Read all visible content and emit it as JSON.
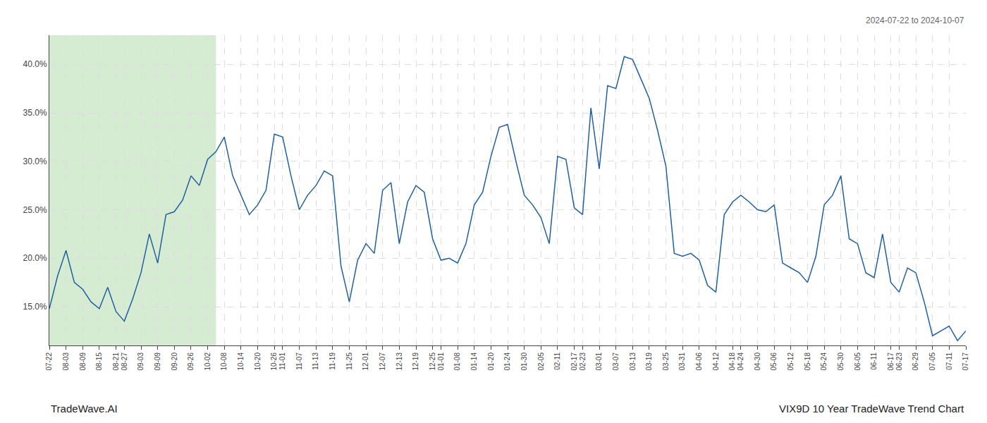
{
  "chart_data": {
    "type": "line",
    "title": "VIX9D 10 Year TradeWave Trend Chart",
    "subtitle": "2024-07-22 to 2024-10-07",
    "annotations": [
      "TradeWave.AI"
    ],
    "color": "#2060A0",
    "grid": true,
    "highlight": {
      "start": "07-22",
      "end": "10-02",
      "color": "#d6ecd2"
    },
    "ylim": [
      11.0,
      43.0
    ],
    "yticks": [
      {
        "value": 15.0,
        "label": "15.0%"
      },
      {
        "value": 20.0,
        "label": "20.0%"
      },
      {
        "value": 25.0,
        "label": "25.0%"
      },
      {
        "value": 30.0,
        "label": "30.0%"
      },
      {
        "value": 35.0,
        "label": "35.0%"
      },
      {
        "value": 40.0,
        "label": "40.0%"
      }
    ],
    "categories": [
      "07-22",
      null,
      "08-03",
      null,
      "08-09",
      null,
      "08-15",
      null,
      "08-21",
      "08-27",
      null,
      "09-03",
      null,
      "09-09",
      null,
      "09-20",
      null,
      "09-26",
      null,
      "10-02",
      null,
      "10-08",
      null,
      "10-14",
      null,
      "10-20",
      null,
      "10-26",
      "11-01",
      null,
      "11-07",
      null,
      "11-13",
      null,
      "11-19",
      null,
      "11-25",
      null,
      "12-01",
      null,
      "12-07",
      null,
      "12-13",
      null,
      "12-19",
      null,
      "12-25",
      "01-01",
      null,
      "01-08",
      null,
      "01-14",
      null,
      "01-20",
      null,
      "01-24",
      null,
      "01-30",
      null,
      "02-05",
      null,
      "02-11",
      null,
      "02-17",
      "02-23",
      null,
      "03-01",
      null,
      "03-07",
      null,
      "03-13",
      null,
      "03-19",
      null,
      "03-25",
      null,
      "03-31",
      null,
      "04-06",
      null,
      "04-12",
      null,
      "04-18",
      "04-24",
      null,
      "04-30",
      null,
      "05-06",
      null,
      "05-12",
      null,
      "05-18",
      null,
      "05-24",
      null,
      "05-30",
      null,
      "06-05",
      null,
      "06-11",
      null,
      "06-17",
      "06-23",
      null,
      "06-29",
      null,
      "07-05",
      null,
      "07-11",
      null,
      "07-17"
    ],
    "values": [
      14.8,
      18.2,
      20.8,
      17.5,
      16.8,
      15.5,
      14.8,
      17.0,
      14.5,
      13.5,
      15.8,
      18.5,
      22.5,
      19.5,
      24.5,
      24.8,
      26.0,
      28.5,
      27.5,
      30.2,
      31.0,
      32.5,
      28.5,
      26.5,
      24.5,
      25.5,
      27.0,
      32.8,
      32.5,
      28.5,
      25.0,
      26.5,
      27.5,
      29.0,
      28.5,
      19.2,
      15.5,
      19.8,
      21.5,
      20.5,
      27.0,
      27.8,
      21.5,
      25.8,
      27.5,
      26.8,
      22.0,
      19.8,
      20.0,
      19.5,
      21.5,
      25.5,
      26.8,
      30.5,
      33.5,
      33.8,
      30.0,
      26.5,
      25.5,
      24.2,
      21.5,
      30.5,
      30.2,
      25.2,
      24.5,
      35.5,
      29.2,
      37.8,
      37.5,
      40.8,
      40.5,
      38.5,
      36.5,
      33.2,
      29.5,
      20.5,
      20.2,
      20.5,
      19.8,
      17.2,
      16.5,
      24.5,
      25.8,
      26.5,
      25.8,
      25.0,
      24.8,
      25.5,
      19.5,
      19.0,
      18.5,
      17.5,
      20.2,
      25.5,
      26.5,
      28.5,
      22.0,
      21.5,
      18.5,
      18.0,
      22.5,
      17.5,
      16.5,
      19.0,
      18.5,
      15.5,
      12.0,
      12.5,
      13.0,
      11.5,
      12.5
    ]
  }
}
